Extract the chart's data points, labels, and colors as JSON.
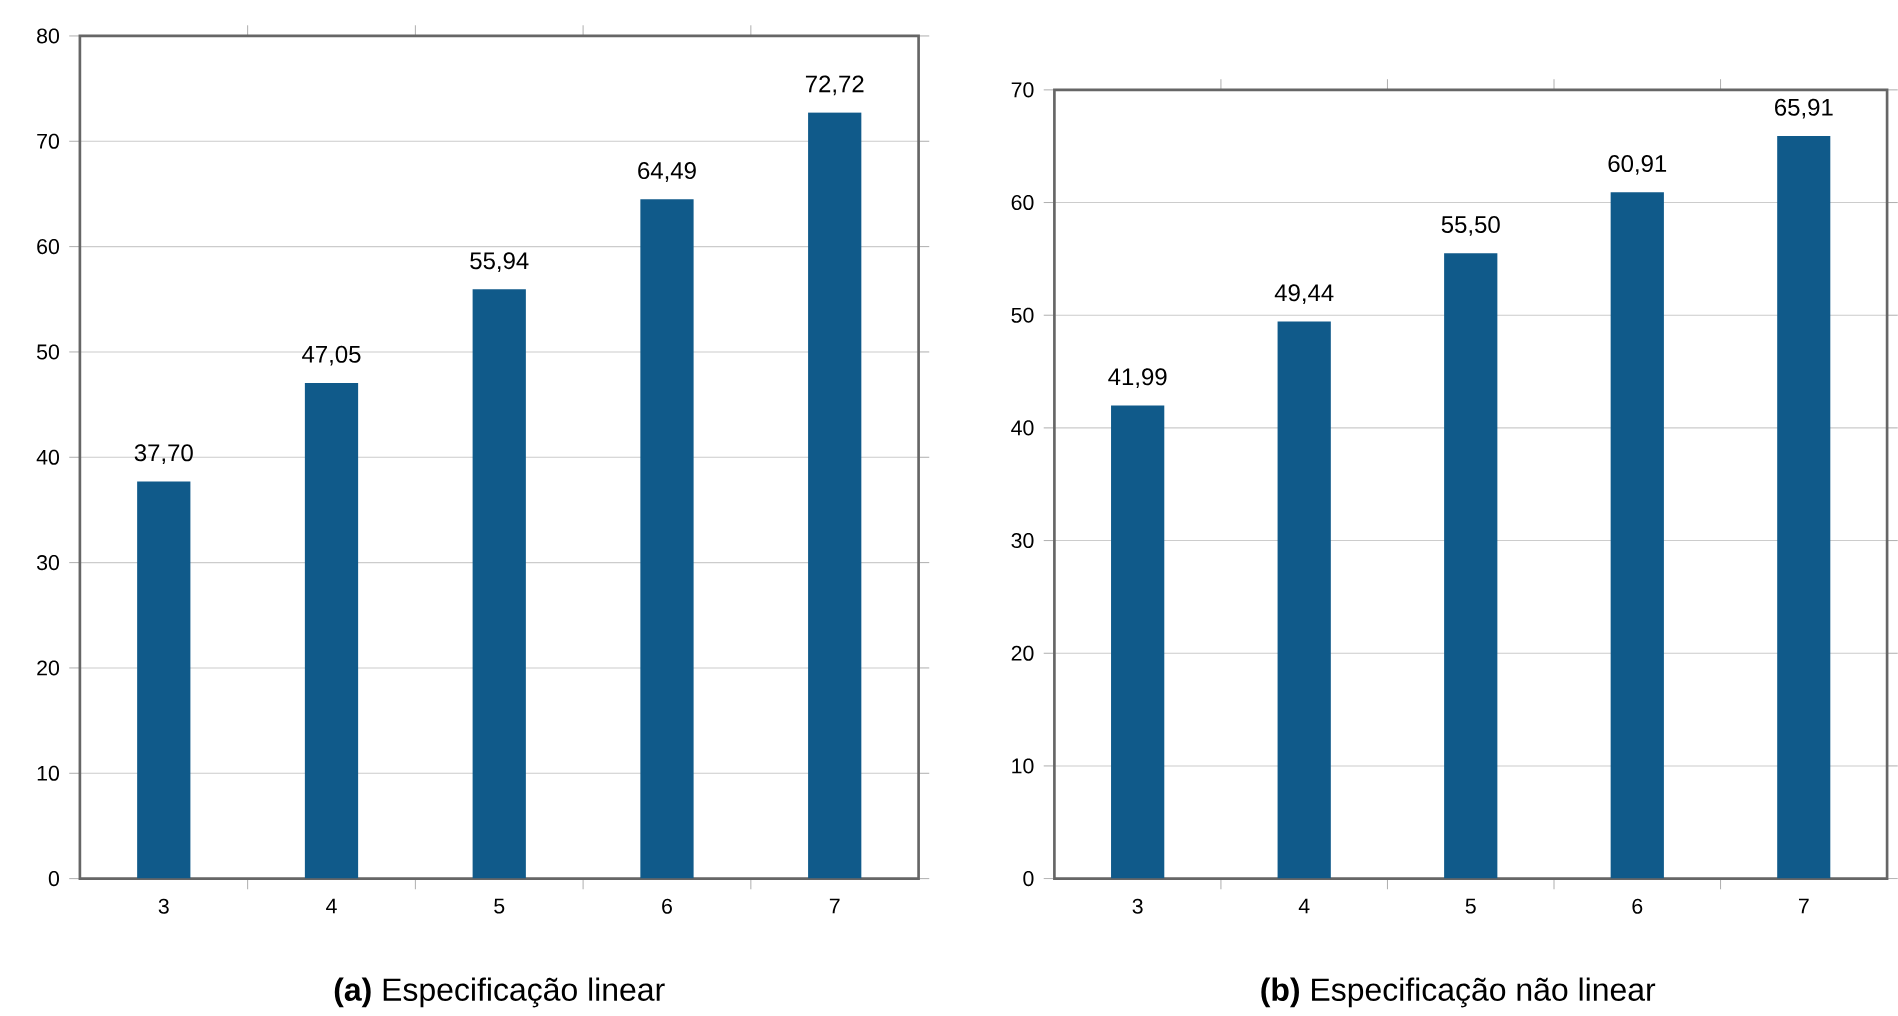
{
  "chart_data": [
    {
      "type": "bar",
      "title": "**(a)** Especificação linear",
      "categories": [
        "3",
        "4",
        "5",
        "6",
        "7"
      ],
      "values": [
        37.7,
        47.05,
        55.94,
        64.49,
        72.72
      ],
      "value_labels": [
        "37,70",
        "47,05",
        "55,94",
        "64,49",
        "72,72"
      ],
      "color": "#105a8a",
      "ylim": [
        0,
        80
      ],
      "yticks": [
        0,
        10,
        20,
        30,
        40,
        50,
        60,
        70,
        80
      ],
      "grid": "y"
    },
    {
      "type": "bar",
      "title": "**(b)** Especificação não linear",
      "categories": [
        "3",
        "4",
        "5",
        "6",
        "7"
      ],
      "values": [
        41.99,
        49.44,
        55.5,
        60.91,
        65.91
      ],
      "value_labels": [
        "41,99",
        "49,44",
        "55,50",
        "60,91",
        "65,91"
      ],
      "color": "#105a8a",
      "ylim": [
        0,
        70
      ],
      "yticks": [
        0,
        10,
        20,
        30,
        40,
        50,
        60,
        70
      ],
      "grid": "y"
    }
  ]
}
